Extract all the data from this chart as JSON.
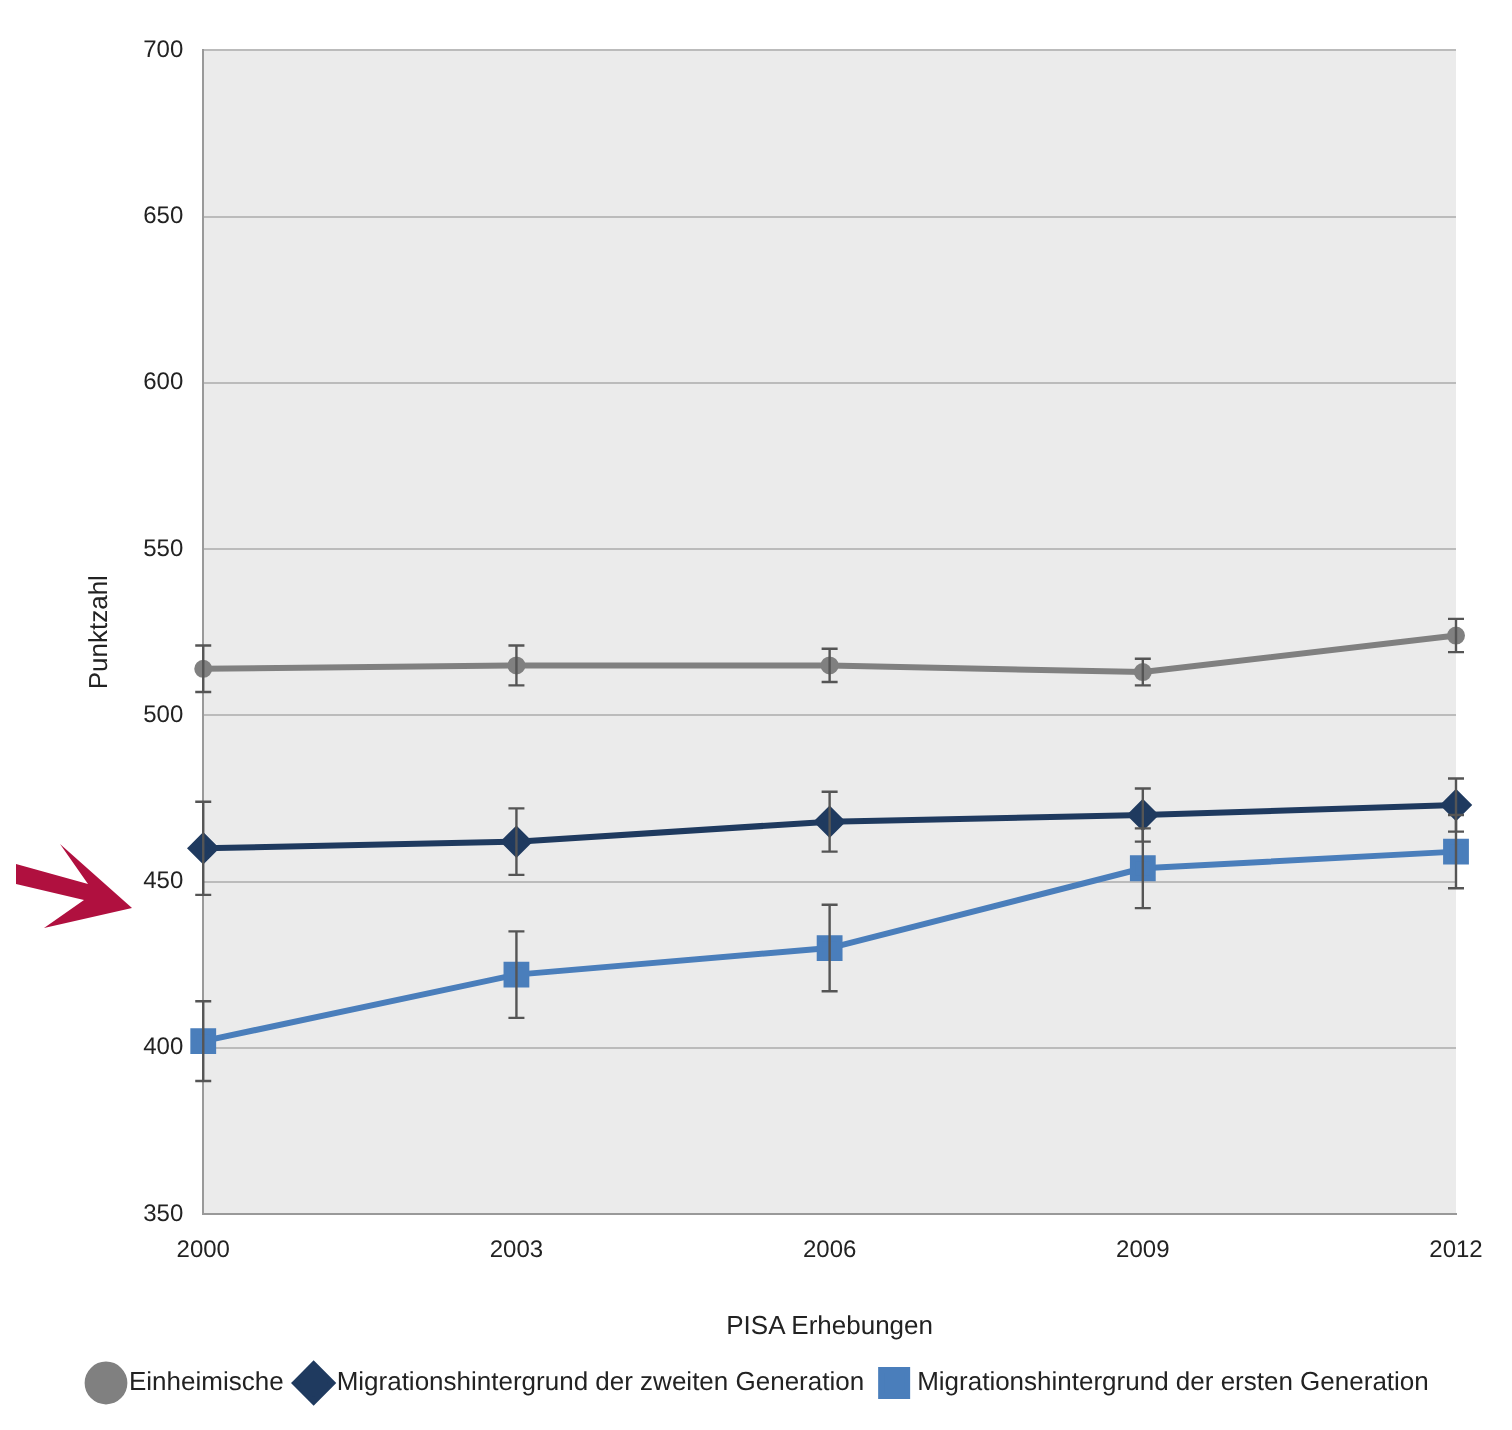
{
  "chart_data": {
    "type": "line",
    "xlabel": "PISA Erhebungen",
    "ylabel": "Punktzahl",
    "categories": [
      "2000",
      "2003",
      "2006",
      "2009",
      "2012"
    ],
    "ylim": [
      350,
      700
    ],
    "yticks": [
      350,
      400,
      450,
      500,
      550,
      600,
      650,
      700
    ],
    "grid": "y",
    "legend": "bottom",
    "line_style": "solid",
    "series": [
      {
        "name": "Einheimische",
        "color": "#808080",
        "marker": "circle",
        "values": [
          514,
          515,
          515,
          513,
          524
        ],
        "errors": [
          7,
          6,
          5,
          4,
          5
        ]
      },
      {
        "name": "Migrationshintergrund der zweiten Generation",
        "color": "#1f3a5f",
        "marker": "diamond",
        "values": [
          460,
          462,
          468,
          470,
          473
        ],
        "errors": [
          14,
          10,
          9,
          8,
          8
        ]
      },
      {
        "name": "Migrationshintergrund der ersten Generation",
        "color": "#4a7ebb",
        "marker": "square",
        "values": [
          402,
          422,
          430,
          454,
          459
        ],
        "errors": [
          12,
          13,
          13,
          12,
          11
        ]
      }
    ]
  }
}
